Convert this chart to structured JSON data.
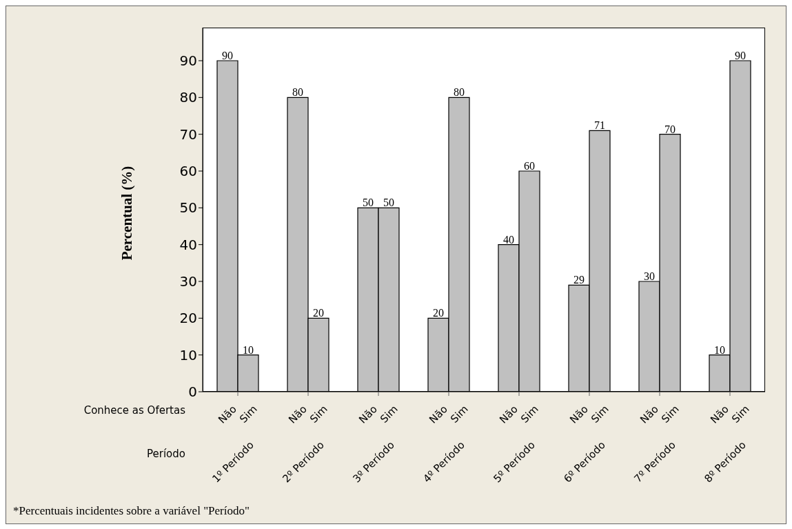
{
  "chart_data": {
    "type": "bar",
    "categories": [
      "1º Período",
      "2º Período",
      "3º Período",
      "4º Período",
      "5º Período",
      "6º Período",
      "7º Período",
      "8º Período"
    ],
    "series": [
      {
        "name": "Não",
        "color": "#c0c0c0",
        "values": [
          90,
          80,
          50,
          20,
          40,
          29,
          30,
          10
        ]
      },
      {
        "name": "Sim",
        "color": "#c0c0c0",
        "values": [
          10,
          20,
          50,
          80,
          60,
          71,
          70,
          90
        ]
      }
    ],
    "ylabel": "Percentual (%)",
    "xlabel": "Período",
    "legend_title": "Conhece as Ofertas",
    "ylim": [
      0,
      99
    ],
    "yticks": [
      0,
      10,
      20,
      30,
      40,
      50,
      60,
      70,
      80,
      90
    ],
    "data_labels": true,
    "grid": false,
    "legend": false,
    "annotations": [
      "*Percentuais incidentes sobre a variável \"Período\""
    ]
  }
}
